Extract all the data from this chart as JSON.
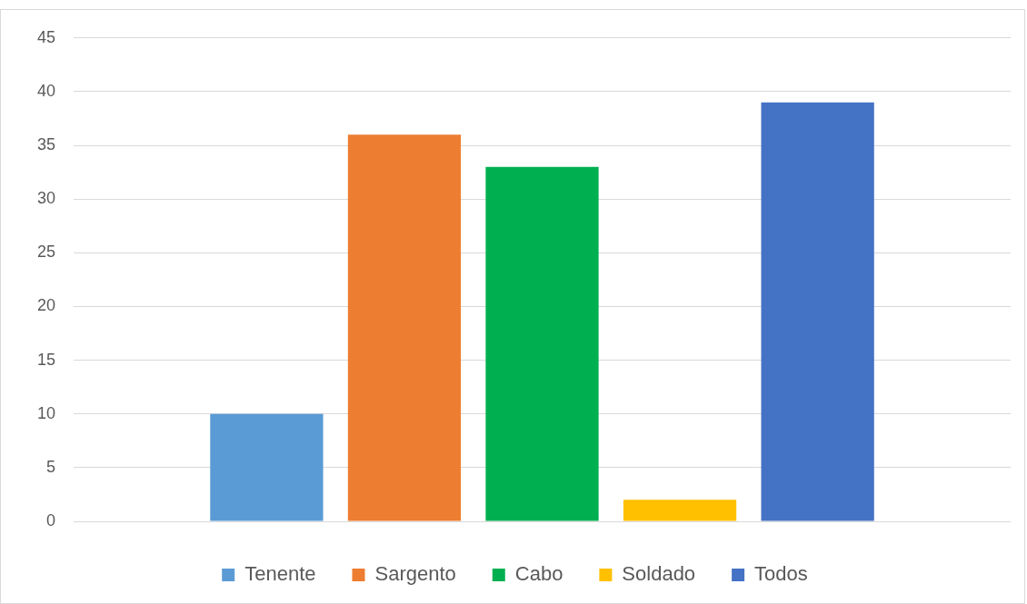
{
  "chart_data": {
    "type": "bar",
    "categories": [
      null
    ],
    "series": [
      {
        "name": "Tenente",
        "color": "#5b9bd5",
        "values": [
          10
        ]
      },
      {
        "name": "Sargento",
        "color": "#ed7d31",
        "values": [
          36
        ]
      },
      {
        "name": "Cabo",
        "color": "#00b050",
        "values": [
          33
        ]
      },
      {
        "name": "Soldado",
        "color": "#ffc000",
        "values": [
          2
        ]
      },
      {
        "name": "Todos",
        "color": "#4472c4",
        "values": [
          39
        ]
      }
    ],
    "ylim": [
      0,
      45
    ],
    "yticks": [
      0,
      5,
      10,
      15,
      20,
      25,
      30,
      35,
      40,
      45
    ],
    "grid": "y",
    "legend": "bottom"
  }
}
